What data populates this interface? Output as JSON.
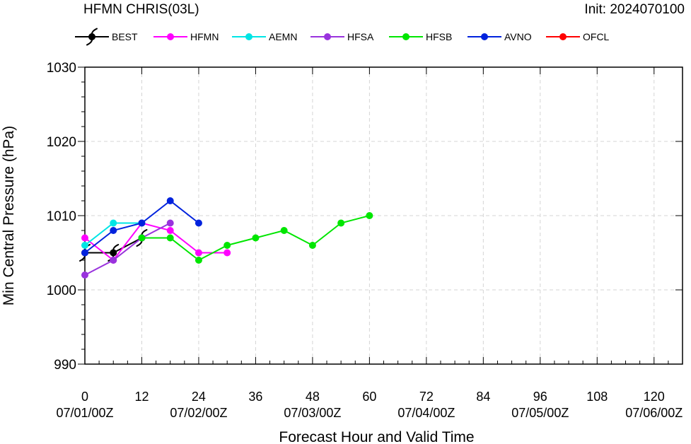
{
  "chart_data": {
    "type": "line",
    "title": "HFMN CHRIS(03L)",
    "subtitle": "Init: 2024070100",
    "xlabel": "Forecast Hour and Valid Time",
    "ylabel": "Min Central Pressure (hPa)",
    "xlim": [
      0,
      126
    ],
    "ylim": [
      990,
      1030
    ],
    "grid": true,
    "legend_position": "top",
    "x_ticks": [
      {
        "value": 0,
        "label": "0",
        "date": "07/01/00Z"
      },
      {
        "value": 12,
        "label": "12",
        "date": ""
      },
      {
        "value": 24,
        "label": "24",
        "date": "07/02/00Z"
      },
      {
        "value": 36,
        "label": "36",
        "date": ""
      },
      {
        "value": 48,
        "label": "48",
        "date": "07/03/00Z"
      },
      {
        "value": 60,
        "label": "60",
        "date": ""
      },
      {
        "value": 72,
        "label": "72",
        "date": "07/04/00Z"
      },
      {
        "value": 84,
        "label": "84",
        "date": ""
      },
      {
        "value": 96,
        "label": "96",
        "date": "07/05/00Z"
      },
      {
        "value": 108,
        "label": "108",
        "date": ""
      },
      {
        "value": 120,
        "label": "120",
        "date": "07/06/00Z"
      }
    ],
    "y_ticks": [
      990,
      1000,
      1010,
      1020,
      1030
    ],
    "series": [
      {
        "name": "BEST",
        "color": "#000000",
        "marker": "hurricane-symbol",
        "x": [
          0,
          6,
          12
        ],
        "y": [
          1005,
          1005,
          1007
        ]
      },
      {
        "name": "HFMN",
        "color": "#ff00ff",
        "marker": "circle",
        "x": [
          0,
          6,
          12,
          18,
          24,
          30
        ],
        "y": [
          1007,
          1004,
          1009,
          1008,
          1005,
          1005
        ]
      },
      {
        "name": "AEMN",
        "color": "#00e5e5",
        "marker": "circle",
        "x": [
          0,
          6,
          12
        ],
        "y": [
          1006,
          1009,
          1009
        ]
      },
      {
        "name": "HFSA",
        "color": "#9933dd",
        "marker": "circle",
        "x": [
          0,
          6,
          12,
          18
        ],
        "y": [
          1002,
          1004,
          1007,
          1009
        ]
      },
      {
        "name": "HFSB",
        "color": "#00e600",
        "marker": "circle",
        "x": [
          12,
          18,
          24,
          30,
          36,
          42,
          48,
          54,
          60
        ],
        "y": [
          1007,
          1007,
          1004,
          1006,
          1007,
          1008,
          1006,
          1009,
          1010
        ]
      },
      {
        "name": "AVNO",
        "color": "#0022dd",
        "marker": "circle",
        "x": [
          0,
          6,
          12,
          18,
          24
        ],
        "y": [
          1005,
          1008,
          1009,
          1012,
          1009
        ]
      },
      {
        "name": "OFCL",
        "color": "#ff0000",
        "marker": "circle",
        "x": [],
        "y": []
      }
    ]
  }
}
